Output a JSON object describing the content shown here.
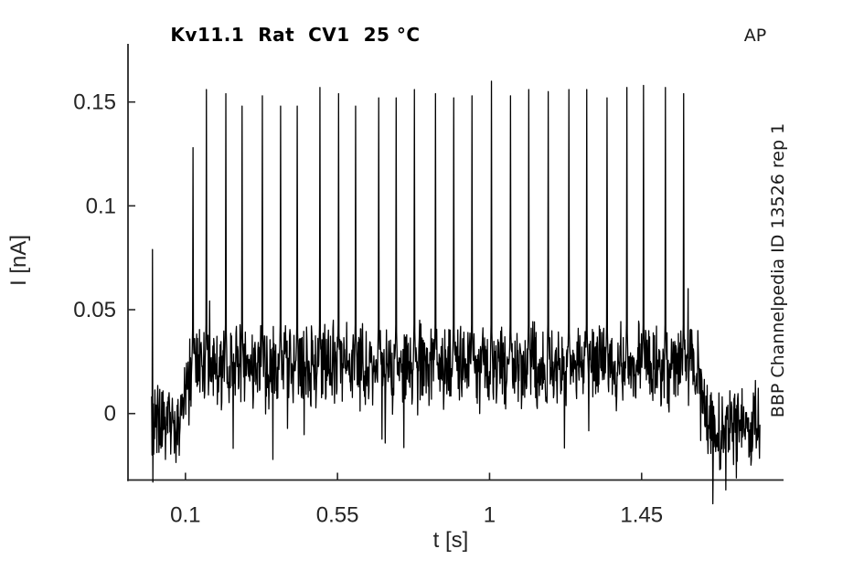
{
  "figure": {
    "title": "Kv11.1  Rat  CV1  25 °C",
    "corner_label": "AP",
    "right_label": "BBP Channelpedia ID 13526 rep 1"
  },
  "chart_data": {
    "type": "line",
    "title": "Kv11.1  Rat  CV1  25 °C",
    "xlabel": "t [s]",
    "ylabel": "I [nA]",
    "xlim": [
      -0.07,
      1.87
    ],
    "ylim": [
      -0.032,
      0.178
    ],
    "grid": false,
    "legend": null,
    "xticks": {
      "values": [
        0.1,
        0.55,
        1,
        1.45
      ],
      "labels": [
        "0.1",
        "0.55",
        "1",
        "1.45"
      ]
    },
    "yticks": {
      "values": [
        0,
        0.05,
        0.1,
        0.15
      ],
      "labels": [
        "0",
        "0.05",
        "0.1",
        "0.15"
      ]
    },
    "colors": {
      "trace": "#000000",
      "axis": "#262626",
      "tick_text": "#242424",
      "background": "#ffffff"
    },
    "trace": {
      "t_start": 0,
      "t_end": 1.8,
      "stim_window": [
        0.1,
        1.63
      ],
      "baseline_pre_nA": -0.004,
      "baseline_stim_nA": 0.023,
      "baseline_post_nA": -0.006,
      "noise_pre_nA": 0.012,
      "noise_stim_nA": 0.012,
      "noise_post_nA": 0.013,
      "initial_transient": {
        "t": 0.002,
        "peak_nA": 0.079,
        "trough_nA": -0.033
      },
      "late_dip": {
        "t": 1.73,
        "trough_nA": -0.031
      },
      "spikes": {
        "times_s": [
          0.122,
          0.162,
          0.219,
          0.268,
          0.328,
          0.382,
          0.431,
          0.498,
          0.553,
          0.604,
          0.672,
          0.723,
          0.778,
          0.84,
          0.894,
          0.948,
          1.005,
          1.062,
          1.116,
          1.173,
          1.235,
          1.287,
          1.347,
          1.406,
          1.455,
          1.52,
          1.574
        ],
        "peaks_nA": [
          0.128,
          0.156,
          0.154,
          0.148,
          0.153,
          0.148,
          0.148,
          0.157,
          0.154,
          0.148,
          0.152,
          0.152,
          0.156,
          0.154,
          0.152,
          0.153,
          0.16,
          0.153,
          0.156,
          0.155,
          0.156,
          0.156,
          0.152,
          0.157,
          0.158,
          0.157,
          0.154
        ]
      }
    }
  }
}
